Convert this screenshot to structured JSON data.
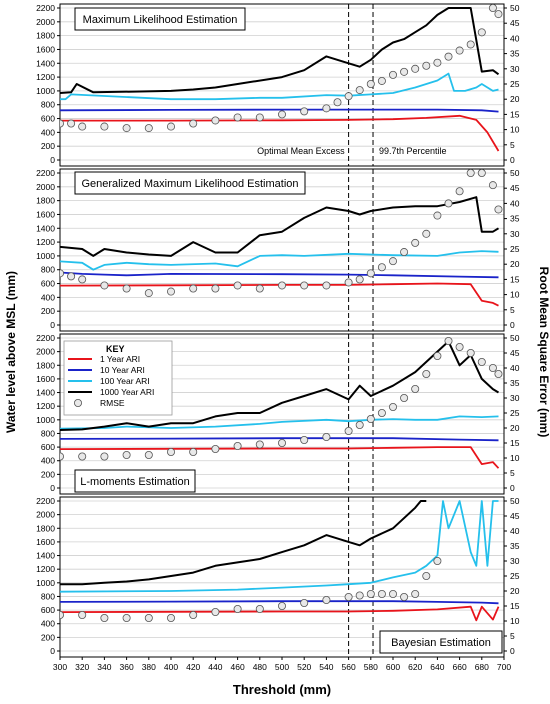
{
  "figure": {
    "ylabel_left": "Water level above MSL (mm)",
    "ylabel_right": "Root Mean Square Error (mm)",
    "xlabel": "Threshold (mm)",
    "key_title": "KEY",
    "vline_labels": [
      "Optimal Mean Excess",
      "99.7th Percentile"
    ],
    "colors": {
      "ari1": "#e8141b",
      "ari10": "#1a23c9",
      "ari100": "#25c0ec",
      "ari1000": "#000000",
      "rmse": "#555555"
    }
  },
  "chart_data": [
    {
      "type": "line",
      "title": "Maximum Likelihood Estimation",
      "xlabel": "Threshold (mm)",
      "ylabel": "Water level above MSL (mm)",
      "y2label": "Root Mean Square Error (mm)",
      "xlim": [
        300,
        700
      ],
      "ylim": [
        0,
        2200
      ],
      "y2lim": [
        0,
        50
      ],
      "xticks": [
        300,
        320,
        340,
        360,
        380,
        400,
        420,
        440,
        460,
        480,
        500,
        520,
        540,
        560,
        580,
        600,
        620,
        640,
        660,
        680,
        700
      ],
      "yticks": [
        0,
        200,
        400,
        600,
        800,
        1000,
        1200,
        1400,
        1600,
        1800,
        2000,
        2200
      ],
      "y2ticks": [
        0,
        5,
        10,
        15,
        20,
        25,
        30,
        35,
        40,
        45,
        50
      ],
      "vlines": [
        560,
        582
      ],
      "series": [
        {
          "name": "1 Year ARI",
          "x": [
            300,
            400,
            500,
            560,
            600,
            630,
            660,
            675,
            685,
            695
          ],
          "y": [
            570,
            570,
            575,
            580,
            590,
            610,
            640,
            580,
            400,
            130
          ]
        },
        {
          "name": "10 Year ARI",
          "x": [
            300,
            400,
            500,
            560,
            600,
            640,
            680,
            695
          ],
          "y": [
            720,
            725,
            730,
            730,
            730,
            730,
            720,
            700
          ]
        },
        {
          "name": "100 Year ARI",
          "x": [
            300,
            305,
            310,
            400,
            440,
            480,
            500,
            540,
            560,
            580,
            600,
            620,
            640,
            650,
            655,
            665,
            675,
            680,
            690,
            695
          ],
          "y": [
            880,
            880,
            950,
            880,
            880,
            900,
            900,
            940,
            930,
            950,
            970,
            1050,
            1150,
            1250,
            1000,
            1000,
            1050,
            1100,
            1000,
            1020
          ]
        },
        {
          "name": "1000 Year ARI",
          "x": [
            300,
            310,
            315,
            330,
            400,
            420,
            440,
            460,
            500,
            520,
            540,
            560,
            570,
            580,
            590,
            600,
            610,
            620,
            630,
            640,
            650,
            660,
            670,
            680,
            690,
            695
          ],
          "y": [
            970,
            980,
            1100,
            980,
            1000,
            1020,
            1050,
            1100,
            1200,
            1300,
            1500,
            1400,
            1350,
            1450,
            1600,
            1700,
            1750,
            1850,
            1950,
            2100,
            2200,
            2200,
            2200,
            1280,
            1300,
            1240
          ]
        },
        {
          "name": "RMSE",
          "axis": "right",
          "marker": "circle",
          "x": [
            300,
            310,
            320,
            340,
            360,
            380,
            400,
            420,
            440,
            460,
            480,
            500,
            520,
            540,
            550,
            560,
            570,
            580,
            590,
            600,
            610,
            620,
            630,
            640,
            650,
            660,
            670,
            680,
            690,
            695
          ],
          "y": [
            12,
            12,
            11,
            11,
            10.5,
            10.5,
            11,
            12,
            13,
            14,
            14,
            15,
            16,
            17,
            19,
            21,
            23,
            25,
            26,
            28,
            29,
            30,
            31,
            32,
            34,
            36,
            38,
            42,
            50,
            48
          ]
        }
      ]
    },
    {
      "type": "line",
      "title": "Generalized Maximum Likelihood Estimation",
      "xlabel": "Threshold (mm)",
      "ylabel": "Water level above MSL (mm)",
      "y2label": "Root Mean Square Error (mm)",
      "xlim": [
        300,
        700
      ],
      "ylim": [
        0,
        2200
      ],
      "y2lim": [
        0,
        50
      ],
      "xticks": [
        300,
        320,
        340,
        360,
        380,
        400,
        420,
        440,
        460,
        480,
        500,
        520,
        540,
        560,
        580,
        600,
        620,
        640,
        660,
        680,
        700
      ],
      "yticks": [
        0,
        200,
        400,
        600,
        800,
        1000,
        1200,
        1400,
        1600,
        1800,
        2000,
        2200
      ],
      "y2ticks": [
        0,
        5,
        10,
        15,
        20,
        25,
        30,
        35,
        40,
        45,
        50
      ],
      "vlines": [
        560,
        582
      ],
      "series": [
        {
          "name": "1 Year ARI",
          "x": [
            300,
            400,
            500,
            560,
            600,
            640,
            670,
            680,
            690,
            695
          ],
          "y": [
            570,
            575,
            580,
            580,
            590,
            600,
            590,
            350,
            320,
            280
          ]
        },
        {
          "name": "10 Year ARI",
          "x": [
            300,
            320,
            340,
            360,
            380,
            400,
            500,
            560,
            600,
            660,
            695
          ],
          "y": [
            760,
            740,
            730,
            720,
            730,
            740,
            735,
            730,
            720,
            700,
            690
          ]
        },
        {
          "name": "100 Year ARI",
          "x": [
            300,
            320,
            330,
            340,
            360,
            380,
            400,
            440,
            460,
            480,
            500,
            520,
            560,
            600,
            640,
            660,
            680,
            695
          ],
          "y": [
            920,
            900,
            800,
            870,
            900,
            880,
            870,
            890,
            850,
            1000,
            1010,
            1000,
            1030,
            1010,
            1000,
            1050,
            1070,
            1060
          ]
        },
        {
          "name": "1000 Year ARI",
          "x": [
            300,
            320,
            330,
            340,
            360,
            380,
            400,
            420,
            440,
            460,
            480,
            500,
            520,
            540,
            560,
            570,
            580,
            600,
            620,
            640,
            660,
            675,
            680,
            690,
            695
          ],
          "y": [
            1130,
            1100,
            1000,
            1100,
            1050,
            1020,
            1000,
            1200,
            1050,
            1050,
            1300,
            1350,
            1550,
            1700,
            1650,
            1600,
            1650,
            1700,
            1720,
            1720,
            1780,
            1850,
            1350,
            1350,
            1400
          ]
        },
        {
          "name": "RMSE",
          "axis": "right",
          "marker": "circle",
          "x": [
            300,
            310,
            320,
            340,
            360,
            380,
            400,
            420,
            440,
            460,
            480,
            500,
            520,
            540,
            560,
            570,
            580,
            590,
            600,
            610,
            620,
            630,
            640,
            650,
            660,
            670,
            680,
            690,
            695
          ],
          "y": [
            17,
            16,
            15,
            13,
            12,
            10.5,
            11,
            12,
            12,
            13,
            12,
            13,
            13,
            13,
            14,
            15,
            17,
            19,
            21,
            24,
            27,
            30,
            36,
            40,
            44,
            50,
            50,
            46,
            38
          ]
        }
      ]
    },
    {
      "type": "line",
      "title": "L-moments Estimation",
      "xlabel": "Threshold (mm)",
      "ylabel": "Water level above MSL (mm)",
      "y2label": "Root Mean Square Error (mm)",
      "xlim": [
        300,
        700
      ],
      "ylim": [
        0,
        2200
      ],
      "y2lim": [
        0,
        50
      ],
      "xticks": [
        300,
        320,
        340,
        360,
        380,
        400,
        420,
        440,
        460,
        480,
        500,
        520,
        540,
        560,
        580,
        600,
        620,
        640,
        660,
        680,
        700
      ],
      "yticks": [
        0,
        200,
        400,
        600,
        800,
        1000,
        1200,
        1400,
        1600,
        1800,
        2000,
        2200
      ],
      "y2ticks": [
        0,
        5,
        10,
        15,
        20,
        25,
        30,
        35,
        40,
        45,
        50
      ],
      "vlines": [
        560,
        582
      ],
      "series": [
        {
          "name": "1 Year ARI",
          "x": [
            300,
            400,
            500,
            560,
            600,
            640,
            670,
            680,
            690,
            695
          ],
          "y": [
            570,
            575,
            580,
            580,
            590,
            600,
            600,
            350,
            380,
            290
          ]
        },
        {
          "name": "10 Year ARI",
          "x": [
            300,
            400,
            500,
            560,
            600,
            660,
            695
          ],
          "y": [
            720,
            725,
            730,
            730,
            730,
            710,
            700
          ]
        },
        {
          "name": "100 Year ARI",
          "x": [
            300,
            340,
            360,
            400,
            440,
            480,
            500,
            540,
            560,
            580,
            600,
            620,
            640,
            660,
            680,
            695
          ],
          "y": [
            870,
            880,
            900,
            880,
            900,
            940,
            970,
            1000,
            980,
            1000,
            1010,
            1000,
            1000,
            1050,
            1040,
            1050
          ]
        },
        {
          "name": "1000 Year ARI",
          "x": [
            300,
            320,
            340,
            360,
            380,
            400,
            420,
            440,
            460,
            480,
            500,
            520,
            540,
            560,
            570,
            580,
            600,
            620,
            640,
            650,
            660,
            670,
            680,
            690,
            695
          ],
          "y": [
            850,
            860,
            900,
            950,
            900,
            950,
            950,
            1050,
            1100,
            1100,
            1250,
            1350,
            1450,
            1300,
            1500,
            1350,
            1500,
            1700,
            2000,
            2150,
            1800,
            1950,
            1600,
            1450,
            1400
          ]
        },
        {
          "name": "RMSE",
          "axis": "right",
          "marker": "circle",
          "x": [
            300,
            320,
            340,
            360,
            380,
            400,
            420,
            440,
            460,
            480,
            500,
            520,
            540,
            560,
            570,
            580,
            590,
            600,
            610,
            620,
            630,
            640,
            650,
            660,
            670,
            680,
            690,
            695
          ],
          "y": [
            10.5,
            10.5,
            10.5,
            11,
            11,
            12,
            12,
            13,
            14,
            14.5,
            15,
            16,
            17,
            19,
            21,
            23,
            25,
            27,
            30,
            33,
            38,
            44,
            49,
            47,
            45,
            42,
            40,
            38
          ]
        }
      ]
    },
    {
      "type": "line",
      "title": "Bayesian Estimation",
      "xlabel": "Threshold (mm)",
      "ylabel": "Water level above MSL (mm)",
      "y2label": "Root Mean Square Error (mm)",
      "xlim": [
        300,
        700
      ],
      "ylim": [
        0,
        2200
      ],
      "y2lim": [
        0,
        50
      ],
      "xticks": [
        300,
        320,
        340,
        360,
        380,
        400,
        420,
        440,
        460,
        480,
        500,
        520,
        540,
        560,
        580,
        600,
        620,
        640,
        660,
        680,
        700
      ],
      "yticks": [
        0,
        200,
        400,
        600,
        800,
        1000,
        1200,
        1400,
        1600,
        1800,
        2000,
        2200
      ],
      "y2ticks": [
        0,
        5,
        10,
        15,
        20,
        25,
        30,
        35,
        40,
        45,
        50
      ],
      "vlines": [
        560,
        582
      ],
      "series": [
        {
          "name": "1 Year ARI",
          "x": [
            300,
            400,
            500,
            560,
            600,
            640,
            670,
            675,
            680,
            690,
            695
          ],
          "y": [
            570,
            575,
            580,
            580,
            590,
            610,
            650,
            450,
            650,
            460,
            650
          ]
        },
        {
          "name": "10 Year ARI",
          "x": [
            300,
            400,
            500,
            560,
            600,
            640,
            680,
            695
          ],
          "y": [
            720,
            725,
            730,
            730,
            730,
            720,
            710,
            700
          ]
        },
        {
          "name": "100 Year ARI",
          "x": [
            300,
            400,
            460,
            500,
            540,
            560,
            580,
            600,
            620,
            630,
            640,
            645,
            650,
            660,
            670,
            675,
            680,
            685,
            690,
            695
          ],
          "y": [
            870,
            880,
            900,
            930,
            960,
            980,
            1000,
            1080,
            1150,
            1250,
            1400,
            2200,
            1800,
            2200,
            1450,
            1250,
            2200,
            1250,
            2200,
            2200
          ]
        },
        {
          "name": "1000 Year ARI",
          "x": [
            300,
            320,
            340,
            360,
            380,
            400,
            420,
            440,
            460,
            480,
            500,
            520,
            540,
            560,
            570,
            580,
            600,
            620,
            625,
            630
          ],
          "y": [
            980,
            980,
            1000,
            1020,
            1050,
            1100,
            1150,
            1250,
            1300,
            1350,
            1450,
            1550,
            1700,
            1600,
            1550,
            1650,
            1800,
            2100,
            2200,
            2200
          ]
        },
        {
          "name": "RMSE",
          "axis": "right",
          "marker": "circle",
          "x": [
            300,
            320,
            340,
            360,
            380,
            400,
            420,
            440,
            460,
            480,
            500,
            520,
            540,
            560,
            570,
            580,
            590,
            600,
            610,
            620,
            630,
            640
          ],
          "y": [
            12,
            12,
            11,
            11,
            11,
            11,
            12,
            13,
            14,
            14,
            15,
            16,
            17,
            18,
            18.5,
            19,
            19,
            19,
            18,
            19,
            25,
            30
          ]
        }
      ]
    }
  ]
}
